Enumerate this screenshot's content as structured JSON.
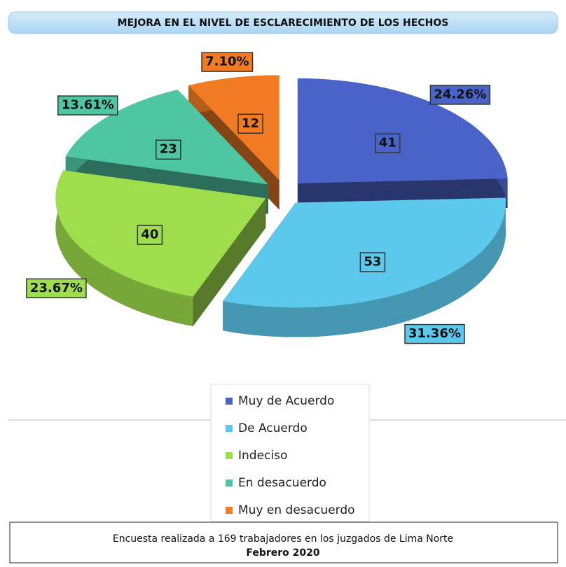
{
  "chart_data": {
    "type": "pie3d",
    "title": "MEJORA EN EL NIVEL DE ESCLARECIMIENTO DE LOS HECHOS",
    "categories": [
      "Muy de Acuerdo",
      "De Acuerdo",
      "Indeciso",
      "En desacuerdo",
      "Muy en desacuerdo"
    ],
    "values": [
      41,
      53,
      40,
      23,
      12
    ],
    "percent_labels": [
      "24.26%",
      "31.36%",
      "23.67%",
      "13.61%",
      "7.10%"
    ],
    "colors": [
      "#4a63c8",
      "#5bc8ec",
      "#9ede4c",
      "#4fc6a2",
      "#f07b22"
    ],
    "legend": "bottom",
    "footnote": [
      "Encuesta realizada a 169 trabajadores en los juzgados de Lima Norte",
      "Febrero 2020"
    ]
  }
}
